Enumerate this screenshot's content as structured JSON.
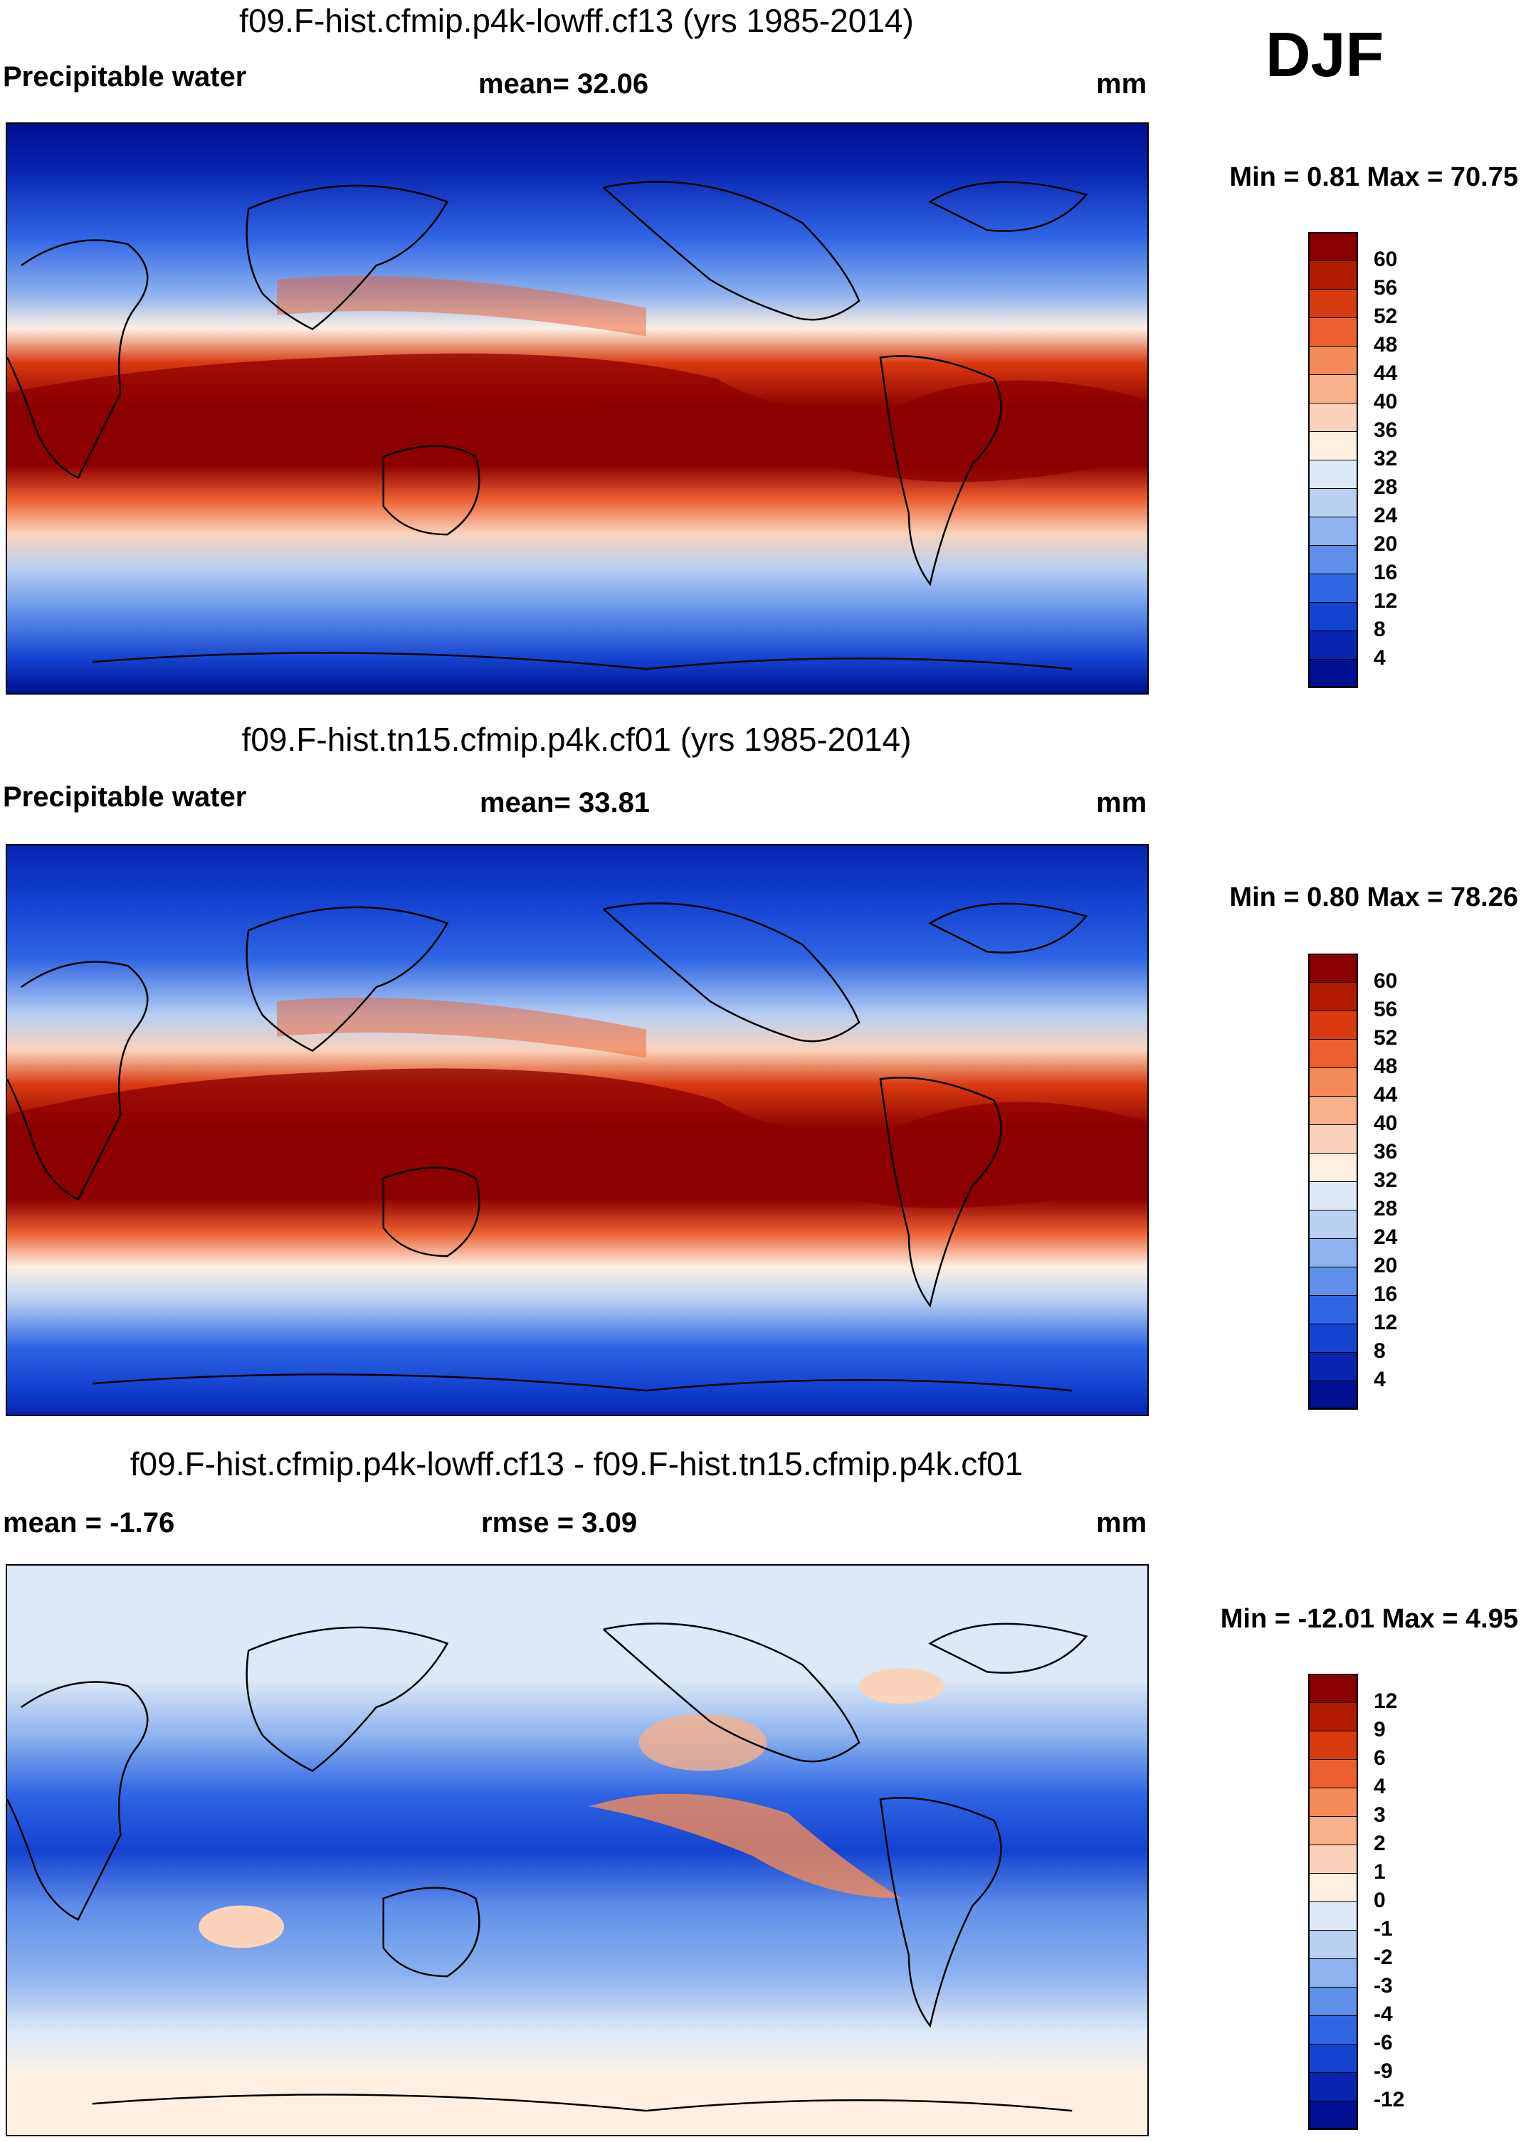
{
  "season": "DJF",
  "units": "mm",
  "panels": [
    {
      "title": "f09.F-hist.cfmip.p4k-lowff.cf13 (yrs 1985-2014)",
      "variable": "Precipitable water",
      "mean_text": "mean=  32.06",
      "units": "mm",
      "minmax_text": "Min =    0.81 Max =  70.75"
    },
    {
      "title": "f09.F-hist.tn15.cfmip.p4k.cf01 (yrs 1985-2014)",
      "variable": "Precipitable water",
      "mean_text": "mean=  33.81",
      "units": "mm",
      "minmax_text": "Min =    0.80 Max =  78.26"
    },
    {
      "title": "f09.F-hist.cfmip.p4k-lowff.cf13 - f09.F-hist.tn15.cfmip.p4k.cf01",
      "mean_text": "mean =  -1.76",
      "rmse_text": "rmse =    3.09",
      "units": "mm",
      "minmax_text": "Min = -12.01 Max =    4.95"
    }
  ],
  "colorbar_abs": {
    "labels": [
      "60",
      "56",
      "52",
      "48",
      "44",
      "40",
      "36",
      "32",
      "28",
      "24",
      "20",
      "16",
      "12",
      "8",
      "4"
    ],
    "colors": [
      "#8b0000",
      "#b21a00",
      "#d83b10",
      "#ec6030",
      "#f48a58",
      "#f8b08a",
      "#fbd3bb",
      "#fdf0e3",
      "#dde9f7",
      "#b8d0f2",
      "#8db2ee",
      "#5f8fe9",
      "#2f66e3",
      "#1343cf",
      "#0824b0",
      "#001090"
    ]
  },
  "colorbar_diff": {
    "labels": [
      "12",
      "9",
      "6",
      "4",
      "3",
      "2",
      "1",
      "0",
      "-1",
      "-2",
      "-3",
      "-4",
      "-6",
      "-9",
      "-12"
    ],
    "colors": [
      "#8b0000",
      "#b21a00",
      "#d83b10",
      "#ec6030",
      "#f48a58",
      "#f8b08a",
      "#fbd3bb",
      "#fdf0e3",
      "#dde9f7",
      "#b8d0f2",
      "#8db2ee",
      "#5f8fe9",
      "#2f66e3",
      "#1343cf",
      "#0824b0",
      "#001090"
    ]
  }
}
